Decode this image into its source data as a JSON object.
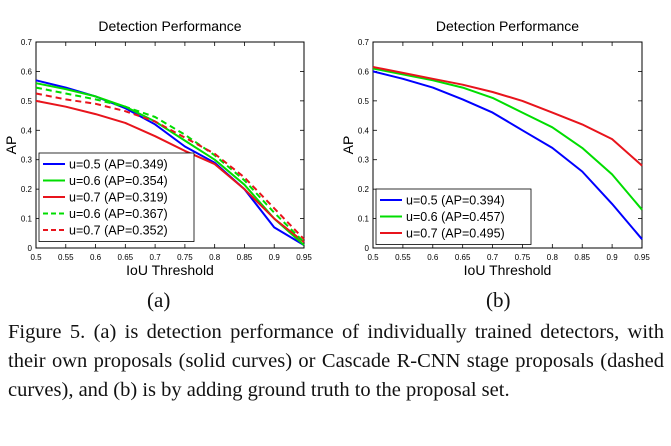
{
  "subfigure_labels": [
    "(a)",
    "(b)"
  ],
  "caption": "Figure 5. (a) is detection performance of individually trained detectors, with their own proposals (solid curves) or Cascade R-CNN stage proposals (dashed curves), and (b) is by adding ground truth to the proposal set.",
  "colors": {
    "blue": "#0000ff",
    "green": "#00dd00",
    "red": "#e8141c",
    "axis": "#000000"
  },
  "chart_data": [
    {
      "type": "line",
      "title": "Detection Performance",
      "xlabel": "IoU Threshold",
      "ylabel": "AP",
      "xlim": [
        0.5,
        0.95
      ],
      "ylim": [
        0,
        0.7
      ],
      "xticks": [
        "0.5",
        "0.55",
        "0.6",
        "0.65",
        "0.7",
        "0.75",
        "0.8",
        "0.85",
        "0.9",
        "0.95"
      ],
      "yticks": [
        "0",
        "0.1",
        "0.2",
        "0.3",
        "0.4",
        "0.5",
        "0.6",
        "0.7"
      ],
      "grid": false,
      "legend_position": "bottom-left",
      "x": [
        0.5,
        0.55,
        0.6,
        0.65,
        0.7,
        0.75,
        0.8,
        0.85,
        0.9,
        0.95
      ],
      "series": [
        {
          "name": "u=0.5 (AP=0.349)",
          "color": "blue",
          "dash": false,
          "values": [
            0.57,
            0.545,
            0.515,
            0.475,
            0.42,
            0.345,
            0.29,
            0.2,
            0.07,
            0.01
          ]
        },
        {
          "name": "u=0.6 (AP=0.354)",
          "color": "green",
          "dash": false,
          "values": [
            0.56,
            0.54,
            0.515,
            0.48,
            0.43,
            0.365,
            0.3,
            0.215,
            0.1,
            0.01
          ]
        },
        {
          "name": "u=0.7 (AP=0.319)",
          "color": "red",
          "dash": false,
          "values": [
            0.5,
            0.48,
            0.455,
            0.425,
            0.38,
            0.33,
            0.285,
            0.2,
            0.1,
            0.02
          ]
        },
        {
          "name": "u=0.6 (AP=0.367)",
          "color": "green",
          "dash": true,
          "values": [
            0.545,
            0.525,
            0.505,
            0.48,
            0.445,
            0.385,
            0.315,
            0.23,
            0.12,
            0.02
          ]
        },
        {
          "name": "u=0.7 (AP=0.352)",
          "color": "red",
          "dash": true,
          "values": [
            0.525,
            0.505,
            0.49,
            0.465,
            0.43,
            0.375,
            0.32,
            0.24,
            0.135,
            0.03
          ]
        }
      ]
    },
    {
      "type": "line",
      "title": "Detection Performance",
      "xlabel": "IoU Threshold",
      "ylabel": "AP",
      "xlim": [
        0.5,
        0.95
      ],
      "ylim": [
        0,
        0.7
      ],
      "xticks": [
        "0.5",
        "0.55",
        "0.6",
        "0.65",
        "0.7",
        "0.75",
        "0.8",
        "0.85",
        "0.9",
        "0.95"
      ],
      "yticks": [
        "0",
        "0.1",
        "0.2",
        "0.3",
        "0.4",
        "0.5",
        "0.6",
        "0.7"
      ],
      "grid": false,
      "legend_position": "bottom-left",
      "x": [
        0.5,
        0.55,
        0.6,
        0.65,
        0.7,
        0.75,
        0.8,
        0.85,
        0.9,
        0.95
      ],
      "series": [
        {
          "name": "u=0.5 (AP=0.394)",
          "color": "blue",
          "dash": false,
          "values": [
            0.6,
            0.575,
            0.545,
            0.505,
            0.46,
            0.4,
            0.34,
            0.26,
            0.15,
            0.03
          ]
        },
        {
          "name": "u=0.6 (AP=0.457)",
          "color": "green",
          "dash": false,
          "values": [
            0.61,
            0.59,
            0.57,
            0.545,
            0.51,
            0.46,
            0.41,
            0.34,
            0.25,
            0.13
          ]
        },
        {
          "name": "u=0.7 (AP=0.495)",
          "color": "red",
          "dash": false,
          "values": [
            0.615,
            0.595,
            0.575,
            0.555,
            0.53,
            0.5,
            0.46,
            0.42,
            0.37,
            0.28
          ]
        }
      ]
    }
  ]
}
